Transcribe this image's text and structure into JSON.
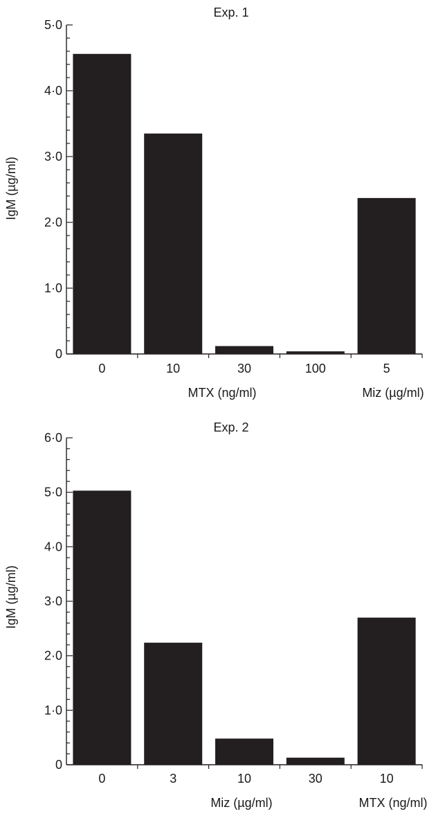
{
  "chart_data": [
    {
      "type": "bar",
      "title": "Exp. 1",
      "ylabel": "IgM (µg/ml)",
      "ylim": [
        0,
        5
      ],
      "yticks": [
        "0",
        "1·0",
        "2·0",
        "3·0",
        "4·0",
        "5·0"
      ],
      "categories": [
        "0",
        "10",
        "30",
        "100",
        "5"
      ],
      "values": [
        4.56,
        3.35,
        0.12,
        0.04,
        2.37
      ],
      "group_labels": [
        "MTX (ng/ml)",
        "Miz (µg/ml)"
      ],
      "grid": false
    },
    {
      "type": "bar",
      "title": "Exp. 2",
      "ylabel": "IgM (µg/ml)",
      "ylim": [
        0,
        6
      ],
      "yticks": [
        "0",
        "1·0",
        "2·0",
        "3·0",
        "4·0",
        "5·0",
        "6·0"
      ],
      "categories": [
        "0",
        "3",
        "10",
        "30",
        "10"
      ],
      "values": [
        5.03,
        2.24,
        0.48,
        0.13,
        2.7
      ],
      "group_labels": [
        "Miz (µg/ml)",
        "MTX (ng/ml)"
      ],
      "grid": false
    }
  ]
}
